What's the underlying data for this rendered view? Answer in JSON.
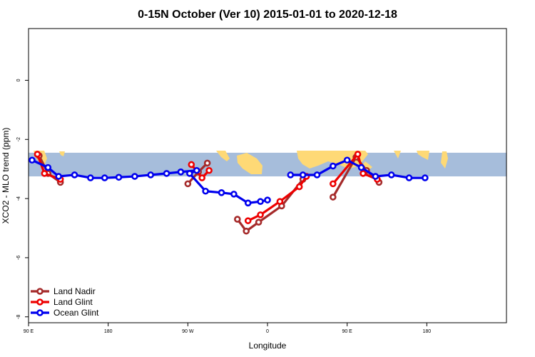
{
  "chart_data": {
    "type": "line",
    "title": "0-15N October (Ver 10)   2015-01-01 to 2020-12-18",
    "xlabel": "Longitude",
    "ylabel": "XCO2 - MLO trend (ppm)",
    "xlim": [
      -90,
      180
    ],
    "ylim": [
      -8.2,
      1.75
    ],
    "x_ticks": [
      {
        "value": -90,
        "label": "90 E"
      },
      {
        "value": -45,
        "label": "180"
      },
      {
        "value": 0,
        "label": "90 W"
      },
      {
        "value": 45,
        "label": "0"
      },
      {
        "value": 90,
        "label": "90 E"
      },
      {
        "value": 135,
        "label": "180"
      }
    ],
    "y_ticks": [
      {
        "value": 0,
        "label": "0"
      },
      {
        "value": -2,
        "label": "-2"
      },
      {
        "value": -4,
        "label": "-4"
      },
      {
        "value": -6,
        "label": "-6"
      },
      {
        "value": -8,
        "label": "-8"
      }
    ],
    "background_band": {
      "y_top": -2.45,
      "y_bottom": -3.25,
      "ocean_color": "#a6bddb",
      "land_color": "#fed976"
    },
    "legend_position": "bottom-left",
    "grid": false,
    "series": [
      {
        "name": "Land Nadir",
        "color": "#a52a2a",
        "segments": [
          [
            {
              "x": -84,
              "y": -2.55
            },
            {
              "x": -79,
              "y": -3.15
            },
            {
              "x": -72,
              "y": -3.45
            }
          ],
          [
            {
              "x": 0,
              "y": -3.5
            },
            {
              "x": 6,
              "y": -3.1
            },
            {
              "x": 11,
              "y": -2.8
            }
          ],
          [
            {
              "x": 28,
              "y": -4.7
            },
            {
              "x": 33,
              "y": -5.1
            },
            {
              "x": 40,
              "y": -4.8
            },
            {
              "x": 53,
              "y": -4.25
            },
            {
              "x": 65,
              "y": -3.35
            }
          ],
          [
            {
              "x": 82,
              "y": -3.95
            },
            {
              "x": 95,
              "y": -2.6
            },
            {
              "x": 101,
              "y": -3.05
            },
            {
              "x": 108,
              "y": -3.45
            }
          ]
        ]
      },
      {
        "name": "Land Glint",
        "color": "#ee0000",
        "segments": [
          [
            {
              "x": -85,
              "y": -2.5
            },
            {
              "x": -81,
              "y": -3.15
            },
            {
              "x": -72,
              "y": -3.35
            }
          ],
          [
            {
              "x": 2,
              "y": -2.85
            },
            {
              "x": 8,
              "y": -3.3
            },
            {
              "x": 12,
              "y": -3.05
            }
          ],
          [
            {
              "x": 34,
              "y": -4.75
            },
            {
              "x": 41,
              "y": -4.55
            },
            {
              "x": 52,
              "y": -4.1
            },
            {
              "x": 63,
              "y": -3.6
            },
            {
              "x": 67,
              "y": -3.25
            }
          ],
          [
            {
              "x": 82,
              "y": -3.5
            },
            {
              "x": 96,
              "y": -2.5
            },
            {
              "x": 99,
              "y": -3.15
            },
            {
              "x": 107,
              "y": -3.35
            }
          ]
        ]
      },
      {
        "name": "Ocean Glint",
        "color": "#0000ee",
        "segments": [
          [
            {
              "x": -88,
              "y": -2.7
            },
            {
              "x": -79,
              "y": -2.95
            },
            {
              "x": -73,
              "y": -3.25
            },
            {
              "x": -64,
              "y": -3.2
            },
            {
              "x": -55,
              "y": -3.3
            },
            {
              "x": -47,
              "y": -3.3
            },
            {
              "x": -39,
              "y": -3.28
            },
            {
              "x": -30,
              "y": -3.25
            },
            {
              "x": -21,
              "y": -3.2
            },
            {
              "x": -12,
              "y": -3.15
            },
            {
              "x": -4,
              "y": -3.1
            },
            {
              "x": 5,
              "y": -3.05
            },
            {
              "x": 1,
              "y": -3.15
            },
            {
              "x": 10,
              "y": -3.75
            },
            {
              "x": 19,
              "y": -3.8
            },
            {
              "x": 26,
              "y": -3.85
            },
            {
              "x": 34,
              "y": -4.15
            },
            {
              "x": 41,
              "y": -4.1
            },
            {
              "x": 45,
              "y": -4.05
            }
          ],
          [
            {
              "x": 58,
              "y": -3.2
            },
            {
              "x": 65,
              "y": -3.2
            },
            {
              "x": 73,
              "y": -3.2
            },
            {
              "x": 82,
              "y": -2.9
            },
            {
              "x": 90,
              "y": -2.7
            },
            {
              "x": 98,
              "y": -2.95
            },
            {
              "x": 106,
              "y": -3.25
            },
            {
              "x": 115,
              "y": -3.2
            },
            {
              "x": 125,
              "y": -3.3
            },
            {
              "x": 134,
              "y": -3.3
            }
          ]
        ]
      }
    ]
  }
}
